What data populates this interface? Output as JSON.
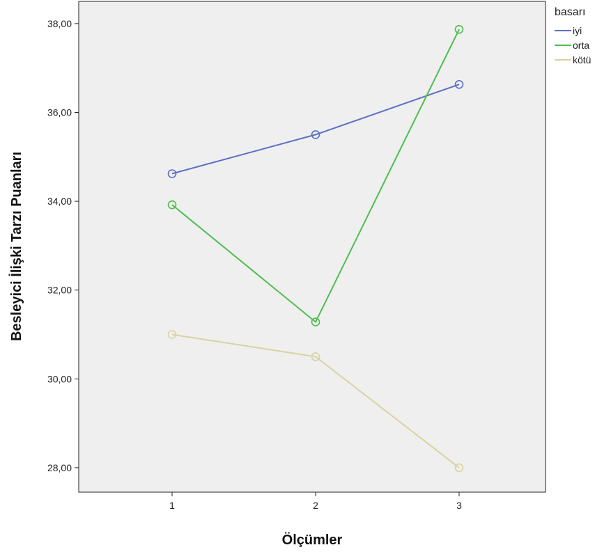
{
  "chart_data": {
    "type": "line",
    "title": "",
    "xlabel": "Ölçümler",
    "ylabel": "Besleyici İlişki Tarzı Puanları",
    "categories": [
      "1",
      "2",
      "3"
    ],
    "ylim": [
      27.45,
      38.5
    ],
    "yticks": [
      "28,00",
      "30,00",
      "32,00",
      "34,00",
      "36,00",
      "38,00"
    ],
    "ytick_values": [
      28,
      30,
      32,
      34,
      36,
      38
    ],
    "grid": false,
    "marker": "open-circle",
    "plot_background": "#efefef",
    "legend": {
      "title": "basarı",
      "placement": "top-right-outside"
    },
    "series": [
      {
        "name": "iyi",
        "color": "#5b6fc4",
        "values": [
          34.62,
          35.5,
          36.63
        ]
      },
      {
        "name": "orta",
        "color": "#4ebd4e",
        "values": [
          33.92,
          31.28,
          37.87
        ]
      },
      {
        "name": "kötü",
        "color": "#d8d3a0",
        "values": [
          31.0,
          30.5,
          28.0
        ]
      }
    ]
  }
}
